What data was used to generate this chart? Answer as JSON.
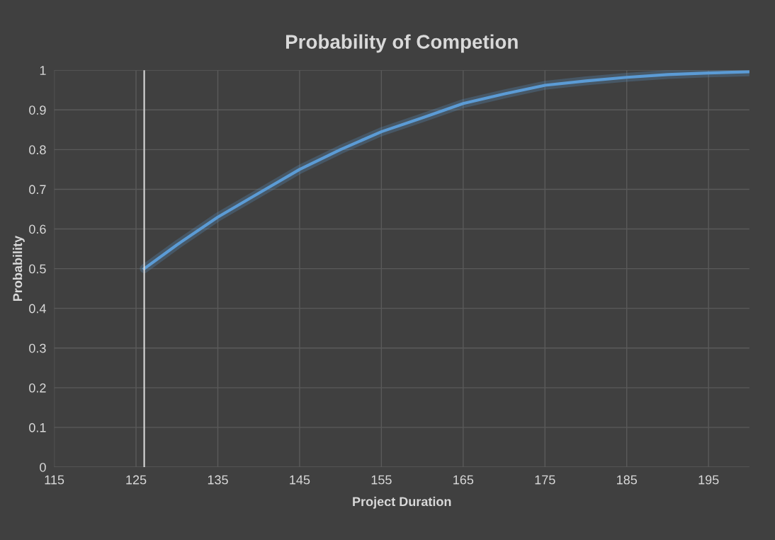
{
  "chart_data": {
    "type": "line",
    "title": "Probability of Competion",
    "xlabel": "Project Duration",
    "ylabel": "Probability",
    "series": [
      {
        "color": "#5b9bd5",
        "x": [
          126,
          130,
          135,
          140,
          145,
          150,
          155,
          160,
          165,
          170,
          175,
          180,
          185,
          190,
          195,
          200
        ],
        "values": [
          0.5,
          0.56,
          0.63,
          0.69,
          0.75,
          0.8,
          0.845,
          0.88,
          0.916,
          0.94,
          0.962,
          0.973,
          0.982,
          0.989,
          0.993,
          0.996
        ]
      }
    ],
    "xlim": [
      115,
      200
    ],
    "xticks": [
      115,
      125,
      135,
      145,
      155,
      165,
      175,
      185,
      195
    ],
    "ylim": [
      0,
      1
    ],
    "yticks": [
      0,
      0.1,
      0.2,
      0.3,
      0.4,
      0.5,
      0.6,
      0.7,
      0.8,
      0.9,
      1
    ],
    "ref_lines": [
      {
        "axis": "x",
        "value": 126,
        "color": "#d9d9d9"
      }
    ],
    "grid": true,
    "marker": "none",
    "line_style": "solid"
  }
}
